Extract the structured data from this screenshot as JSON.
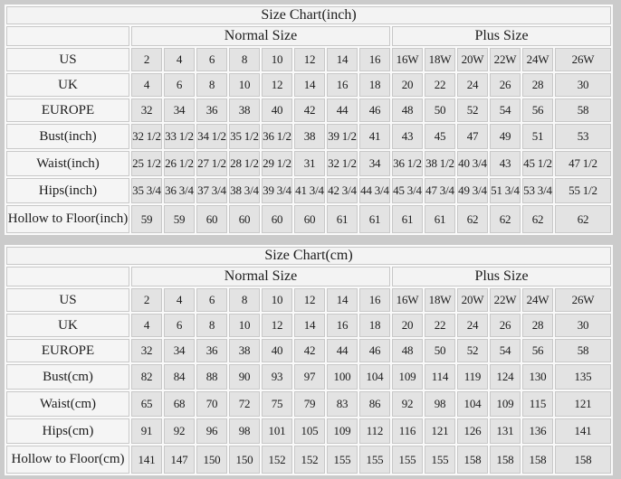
{
  "colors": {
    "page_background": "#cbcbcb",
    "cell_gap": "#fafafa",
    "label_cell": "#f5f5f5",
    "data_cell": "#e3e3e3",
    "header_cell": "#f3f3f3",
    "border": "#c8c8c8",
    "text": "#1c1c1c"
  },
  "tables": [
    {
      "title": "Size Chart(inch)",
      "group_headers": [
        {
          "label": "Normal Size",
          "span": 8
        },
        {
          "label": "Plus Size",
          "span": 6
        }
      ],
      "rows": [
        {
          "label": "US",
          "values": [
            "2",
            "4",
            "6",
            "8",
            "10",
            "12",
            "14",
            "16",
            "16W",
            "18W",
            "20W",
            "22W",
            "24W",
            "26W"
          ]
        },
        {
          "label": "UK",
          "values": [
            "4",
            "6",
            "8",
            "10",
            "12",
            "14",
            "16",
            "18",
            "20",
            "22",
            "24",
            "26",
            "28",
            "30"
          ]
        },
        {
          "label": "EUROPE",
          "values": [
            "32",
            "34",
            "36",
            "38",
            "40",
            "42",
            "44",
            "46",
            "48",
            "50",
            "52",
            "54",
            "56",
            "58"
          ]
        },
        {
          "label": "Bust(inch)",
          "values": [
            "32 1/2",
            "33 1/2",
            "34 1/2",
            "35 1/2",
            "36 1/2",
            "38",
            "39 1/2",
            "41",
            "43",
            "45",
            "47",
            "49",
            "51",
            "53"
          ]
        },
        {
          "label": "Waist(inch)",
          "values": [
            "25 1/2",
            "26 1/2",
            "27 1/2",
            "28 1/2",
            "29 1/2",
            "31",
            "32 1/2",
            "34",
            "36 1/2",
            "38 1/2",
            "40 3/4",
            "43",
            "45 1/2",
            "47 1/2"
          ]
        },
        {
          "label": "Hips(inch)",
          "values": [
            "35 3/4",
            "36 3/4",
            "37 3/4",
            "38 3/4",
            "39 3/4",
            "41 3/4",
            "42 3/4",
            "44 3/4",
            "45 3/4",
            "47 3/4",
            "49 3/4",
            "51 3/4",
            "53 3/4",
            "55 1/2"
          ]
        },
        {
          "label": "Hollow to Floor(inch)",
          "values": [
            "59",
            "59",
            "60",
            "60",
            "60",
            "60",
            "61",
            "61",
            "61",
            "61",
            "62",
            "62",
            "62",
            "62"
          ]
        }
      ]
    },
    {
      "title": "Size Chart(cm)",
      "group_headers": [
        {
          "label": "Normal Size",
          "span": 8
        },
        {
          "label": "Plus Size",
          "span": 6
        }
      ],
      "rows": [
        {
          "label": "US",
          "values": [
            "2",
            "4",
            "6",
            "8",
            "10",
            "12",
            "14",
            "16",
            "16W",
            "18W",
            "20W",
            "22W",
            "24W",
            "26W"
          ]
        },
        {
          "label": "UK",
          "values": [
            "4",
            "6",
            "8",
            "10",
            "12",
            "14",
            "16",
            "18",
            "20",
            "22",
            "24",
            "26",
            "28",
            "30"
          ]
        },
        {
          "label": "EUROPE",
          "values": [
            "32",
            "34",
            "36",
            "38",
            "40",
            "42",
            "44",
            "46",
            "48",
            "50",
            "52",
            "54",
            "56",
            "58"
          ]
        },
        {
          "label": "Bust(cm)",
          "values": [
            "82",
            "84",
            "88",
            "90",
            "93",
            "97",
            "100",
            "104",
            "109",
            "114",
            "119",
            "124",
            "130",
            "135"
          ]
        },
        {
          "label": "Waist(cm)",
          "values": [
            "65",
            "68",
            "70",
            "72",
            "75",
            "79",
            "83",
            "86",
            "92",
            "98",
            "104",
            "109",
            "115",
            "121"
          ]
        },
        {
          "label": "Hips(cm)",
          "values": [
            "91",
            "92",
            "96",
            "98",
            "101",
            "105",
            "109",
            "112",
            "116",
            "121",
            "126",
            "131",
            "136",
            "141"
          ]
        },
        {
          "label": "Hollow to Floor(cm)",
          "values": [
            "141",
            "147",
            "150",
            "150",
            "152",
            "152",
            "155",
            "155",
            "155",
            "155",
            "158",
            "158",
            "158",
            "158"
          ]
        }
      ]
    }
  ]
}
